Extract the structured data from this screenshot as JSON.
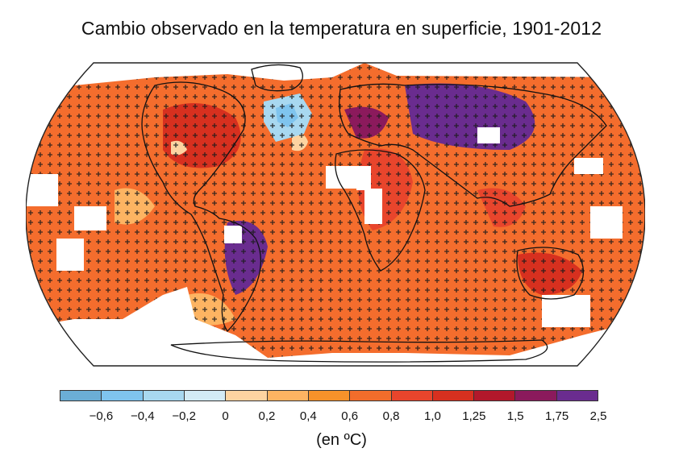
{
  "title": "Cambio observado en la temperatura en superficie, 1901-2012",
  "legend": {
    "colors": [
      "#6baed6",
      "#7fc4ee",
      "#a8d8f0",
      "#d3ebf5",
      "#fdd4a1",
      "#fdb462",
      "#f7922a",
      "#f26d2b",
      "#e8452c",
      "#d7301f",
      "#b2182b",
      "#8b1a5c",
      "#6a2c8f"
    ],
    "ticks": [
      "−0,6",
      "−0,4",
      "−0,2",
      "0",
      "0,2",
      "0,4",
      "0,6",
      "0,8",
      "1,0",
      "1,25",
      "1,5",
      "1,75",
      "2,5"
    ],
    "unit": "(en ºC)"
  },
  "map": {
    "background_color": "#f46d2d",
    "no_data_color": "#ffffff",
    "outline_color": "#111111"
  }
}
